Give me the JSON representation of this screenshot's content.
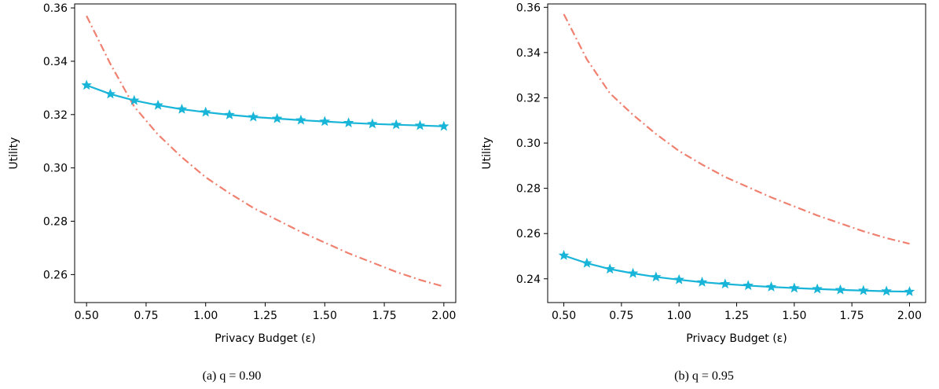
{
  "chart_data": [
    {
      "type": "line",
      "caption": "(a) q = 0.90",
      "xlabel": "Privacy Budget (ε)",
      "ylabel": "Utility",
      "xlim": [
        0.45,
        2.05
      ],
      "ylim": [
        0.2495,
        0.3615
      ],
      "xticks": [
        "0.50",
        "0.75",
        "1.00",
        "1.25",
        "1.50",
        "1.75",
        "2.00"
      ],
      "xtick_values": [
        0.5,
        0.75,
        1.0,
        1.25,
        1.5,
        1.75,
        2.0
      ],
      "yticks": [
        "0.26",
        "0.28",
        "0.30",
        "0.32",
        "0.34",
        "0.36"
      ],
      "ytick_values": [
        0.26,
        0.28,
        0.3,
        0.32,
        0.34,
        0.36
      ],
      "grid": false,
      "series": [
        {
          "color": "#f08070",
          "style": "dash-dot",
          "marker": "none",
          "x": [
            0.5,
            0.6,
            0.7,
            0.8,
            0.9,
            1.0,
            1.1,
            1.2,
            1.3,
            1.4,
            1.5,
            1.6,
            1.7,
            1.8,
            1.9,
            2.0
          ],
          "values": [
            0.357,
            0.339,
            0.323,
            0.3125,
            0.304,
            0.2965,
            0.2905,
            0.285,
            0.2805,
            0.276,
            0.272,
            0.268,
            0.2645,
            0.261,
            0.258,
            0.2555
          ]
        },
        {
          "color": "#19b5d8",
          "style": "solid",
          "marker": "star",
          "x": [
            0.5,
            0.6,
            0.7,
            0.8,
            0.9,
            1.0,
            1.1,
            1.2,
            1.3,
            1.4,
            1.5,
            1.6,
            1.7,
            1.8,
            1.9,
            2.0
          ],
          "values": [
            0.331,
            0.3277,
            0.3253,
            0.3235,
            0.322,
            0.3209,
            0.3199,
            0.3191,
            0.3185,
            0.3179,
            0.3174,
            0.3169,
            0.3165,
            0.3162,
            0.3159,
            0.3156
          ]
        }
      ]
    },
    {
      "type": "line",
      "caption": "(b) q = 0.95",
      "xlabel": "Privacy Budget (ε)",
      "ylabel": "Utility",
      "xlim": [
        0.43,
        2.07
      ],
      "ylim": [
        0.2295,
        0.3615
      ],
      "xticks": [
        "0.50",
        "0.75",
        "1.00",
        "1.25",
        "1.50",
        "1.75",
        "2.00"
      ],
      "xtick_values": [
        0.5,
        0.75,
        1.0,
        1.25,
        1.5,
        1.75,
        2.0
      ],
      "yticks": [
        "0.24",
        "0.26",
        "0.28",
        "0.30",
        "0.32",
        "0.34",
        "0.36"
      ],
      "ytick_values": [
        0.24,
        0.26,
        0.28,
        0.3,
        0.32,
        0.34,
        0.36
      ],
      "grid": false,
      "series": [
        {
          "color": "#f08070",
          "style": "dash-dot",
          "marker": "none",
          "x": [
            0.5,
            0.6,
            0.7,
            0.8,
            0.9,
            1.0,
            1.1,
            1.2,
            1.3,
            1.4,
            1.5,
            1.6,
            1.7,
            1.8,
            1.9,
            2.0
          ],
          "values": [
            0.357,
            0.337,
            0.322,
            0.3125,
            0.304,
            0.2965,
            0.2905,
            0.285,
            0.2805,
            0.276,
            0.272,
            0.268,
            0.2645,
            0.261,
            0.258,
            0.2555
          ]
        },
        {
          "color": "#19b5d8",
          "style": "solid",
          "marker": "star",
          "x": [
            0.5,
            0.6,
            0.7,
            0.8,
            0.9,
            1.0,
            1.1,
            1.2,
            1.3,
            1.4,
            1.5,
            1.6,
            1.7,
            1.8,
            1.9,
            2.0
          ],
          "values": [
            0.2503,
            0.2469,
            0.2443,
            0.2424,
            0.2408,
            0.2396,
            0.2385,
            0.2377,
            0.237,
            0.2364,
            0.2359,
            0.2355,
            0.2351,
            0.2348,
            0.2345,
            0.2343
          ]
        }
      ]
    }
  ]
}
